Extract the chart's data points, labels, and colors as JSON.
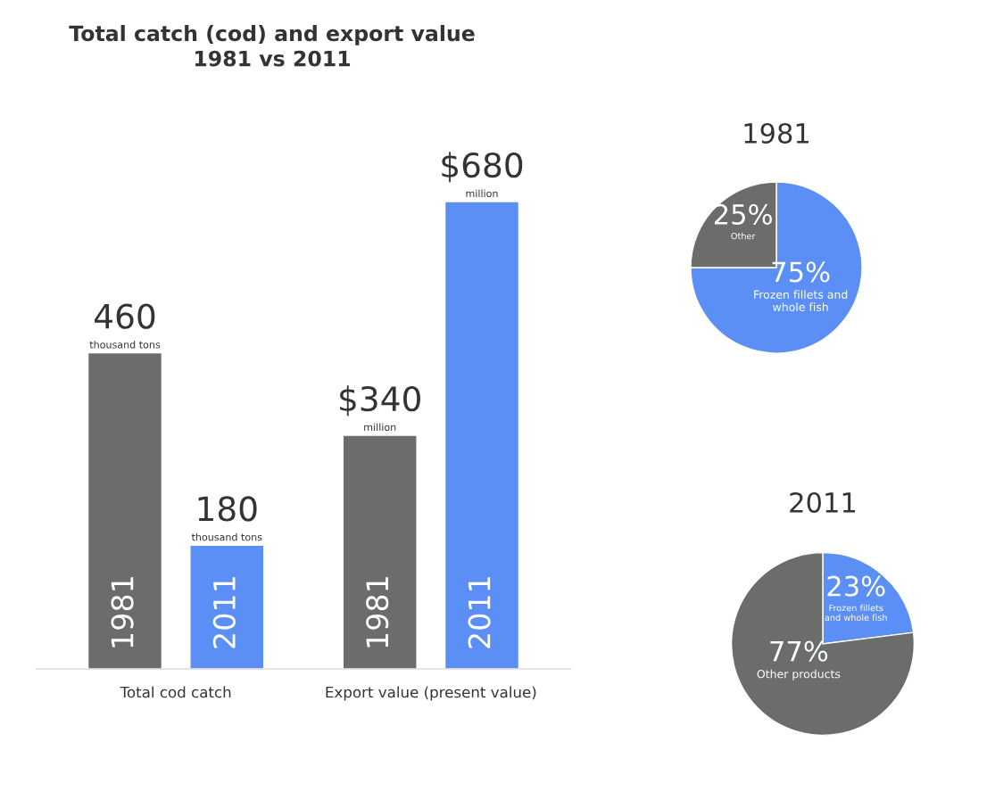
{
  "chart_data": [
    {
      "type": "bar",
      "title": "Total catch (cod) and export value\n1981 vs 2011",
      "categories": [
        "Total cod catch",
        "Export value (present value)"
      ],
      "series": [
        {
          "name": "1981",
          "color": "#6b6d6b",
          "values": [
            460,
            340
          ],
          "value_labels": [
            "460",
            "$340"
          ]
        },
        {
          "name": "2011",
          "color": "#5b8ff5",
          "values": [
            180,
            680
          ],
          "value_labels": [
            "180",
            "$680"
          ]
        }
      ],
      "annotations": [
        "thousand tons",
        "million",
        "thousand tons",
        "million"
      ],
      "grid": false,
      "legend": false
    },
    {
      "type": "pie",
      "title": "1981",
      "categories": [
        "Frozen fillets and\nwhole fish",
        "Other"
      ],
      "values": [
        75,
        25
      ],
      "colors": [
        "#5b8ff5",
        "#6b6d6b"
      ],
      "value_labels": [
        "75%",
        "25%"
      ]
    },
    {
      "type": "pie",
      "title": "2011",
      "categories": [
        "Frozen fillets\nand whole fish",
        "Other products"
      ],
      "values": [
        23,
        77
      ],
      "colors": [
        "#5b8ff5",
        "#6b6d6b"
      ],
      "value_labels": [
        "23%",
        "77%"
      ]
    }
  ]
}
